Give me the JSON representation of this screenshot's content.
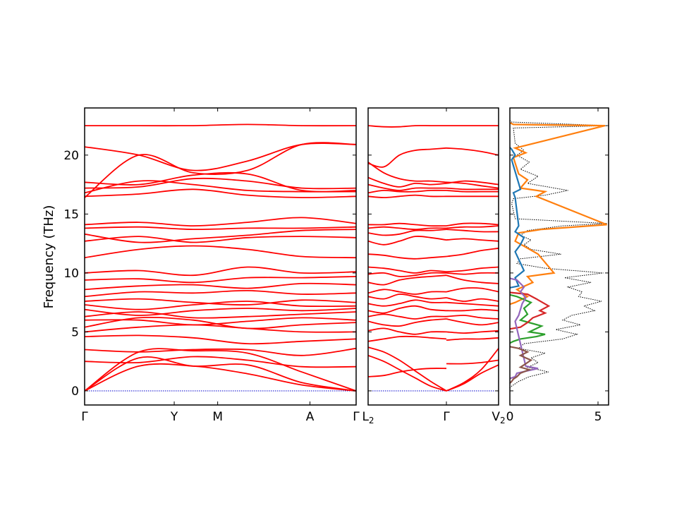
{
  "chart_data": {
    "type": "line",
    "ylabel": "Frequency (THz)",
    "ylim": [
      -1.2,
      24
    ],
    "yticks": [
      0,
      5,
      10,
      15,
      20
    ],
    "zero_line_color": "#0000cc",
    "band_color": "#ff0000",
    "panels": [
      {
        "kind": "dispersion",
        "xticks": [
          "Γ",
          "Y",
          "M",
          "A",
          "Γ"
        ],
        "tick_positions": [
          0,
          0.33,
          0.49,
          0.83,
          1.0
        ],
        "band_segments": [
          {
            "from": 0,
            "to": 1,
            "bands": [
              [
                0,
                2.1,
                2.1,
                1.45,
                0.5,
                0
              ],
              [
                0,
                2.8,
                2.1,
                2.2,
                0.7,
                0
              ],
              [
                0,
                3.3,
                3.4,
                3.2,
                1.6,
                0
              ],
              [
                2.5,
                2.4,
                2.9,
                2.6,
                2.05,
                2.05
              ],
              [
                3.5,
                3.3,
                3.5,
                3.5,
                3.0,
                3.6
              ],
              [
                4.6,
                4.7,
                4.5,
                4.0,
                4.2,
                4.4
              ],
              [
                5.0,
                5.4,
                5.6,
                5.3,
                5.0,
                5.0
              ],
              [
                5.4,
                6.2,
                6.0,
                5.3,
                5.6,
                5.8
              ],
              [
                6.0,
                6.0,
                5.6,
                5.9,
                6.2,
                6.0
              ],
              [
                6.3,
                6.7,
                6.2,
                6.3,
                6.5,
                6.7
              ],
              [
                6.9,
                6.4,
                6.8,
                7.0,
                6.8,
                7.0
              ],
              [
                7.3,
                6.9,
                7.3,
                7.6,
                7.2,
                7.2
              ],
              [
                7.6,
                7.8,
                7.5,
                7.3,
                7.7,
                7.5
              ],
              [
                8.0,
                8.4,
                8.3,
                8.5,
                8.2,
                8.3
              ],
              [
                8.6,
                8.9,
                9.0,
                8.7,
                9.1,
                9.0
              ],
              [
                9.4,
                9.5,
                9.2,
                9.6,
                9.6,
                9.7
              ],
              [
                10.0,
                10.2,
                9.8,
                10.5,
                10.0,
                10.1
              ],
              [
                11.3,
                12.0,
                12.3,
                12.0,
                11.4,
                11.3
              ],
              [
                12.7,
                13.1,
                12.6,
                13.0,
                13.1,
                13.0
              ],
              [
                13.3,
                12.6,
                12.9,
                13.2,
                13.6,
                13.7
              ],
              [
                13.8,
                13.9,
                13.7,
                13.8,
                13.8,
                13.9
              ],
              [
                14.1,
                14.3,
                14.0,
                14.3,
                14.7,
                14.2
              ],
              [
                16.5,
                16.7,
                17.1,
                16.6,
                16.4,
                16.5
              ],
              [
                16.8,
                17.8,
                17.5,
                17.0,
                16.9,
                16.9
              ],
              [
                17.2,
                17.3,
                18.0,
                17.8,
                17.2,
                17.2
              ],
              [
                17.7,
                17.5,
                18.3,
                18.4,
                17.0,
                17.0
              ],
              [
                16.4,
                20.0,
                18.5,
                18.7,
                20.9,
                20.9
              ],
              [
                20.7,
                20.0,
                18.7,
                19.5,
                20.9,
                20.9
              ],
              [
                22.5,
                22.5,
                22.5,
                22.6,
                22.5,
                22.5
              ]
            ]
          }
        ]
      },
      {
        "kind": "dispersion",
        "xticks": [
          "L2",
          "Γ",
          "V2"
        ],
        "tick_positions": [
          0,
          0.6,
          1.0
        ],
        "band_segments": [
          {
            "from": 0,
            "to": 0.6,
            "bands": [
              [
                1.2,
                1.3,
                1.6,
                1.8,
                1.9,
                1.9
              ],
              [
                3.0,
                2.5,
                1.8,
                1.1,
                0.4,
                0
              ],
              [
                3.7,
                3.3,
                2.6,
                1.7,
                0.8,
                0
              ],
              [
                4.2,
                4.4,
                4.6,
                4.6,
                4.5,
                4.4
              ],
              [
                5.1,
                5.3,
                5.0,
                4.8,
                5.0,
                5.0
              ],
              [
                5.9,
                5.6,
                5.5,
                5.8,
                6.0,
                6.1
              ],
              [
                6.3,
                6.5,
                6.3,
                6.1,
                6.3,
                6.3
              ],
              [
                6.8,
                6.6,
                7.0,
                7.2,
                6.9,
                6.8
              ],
              [
                7.4,
                7.2,
                7.4,
                7.7,
                7.5,
                7.5
              ],
              [
                8.0,
                7.8,
                8.2,
                8.0,
                7.8,
                7.9
              ],
              [
                8.3,
                8.6,
                8.4,
                8.2,
                8.4,
                8.4
              ],
              [
                9.2,
                9.0,
                9.4,
                9.6,
                9.7,
                9.8
              ],
              [
                9.9,
                10.0,
                9.7,
                9.8,
                10.0,
                10.0
              ],
              [
                10.5,
                10.4,
                10.2,
                10.0,
                10.2,
                10.1
              ],
              [
                11.6,
                11.5,
                11.3,
                11.2,
                11.3,
                11.4
              ],
              [
                12.7,
                12.4,
                12.7,
                13.1,
                13.0,
                12.8
              ],
              [
                13.4,
                13.2,
                13.3,
                13.6,
                13.6,
                13.7
              ],
              [
                13.8,
                13.9,
                13.8,
                13.7,
                13.8,
                13.8
              ],
              [
                14.1,
                14.1,
                14.2,
                14.1,
                14.0,
                14.0
              ],
              [
                16.5,
                16.4,
                16.5,
                16.6,
                16.5,
                16.5
              ],
              [
                16.8,
                17.0,
                16.9,
                16.9,
                17.0,
                17.0
              ],
              [
                17.5,
                17.2,
                17.0,
                17.2,
                17.2,
                17.2
              ],
              [
                18.1,
                17.6,
                17.3,
                17.6,
                17.5,
                17.6
              ],
              [
                19.4,
                18.5,
                18.0,
                17.8,
                17.8,
                17.7
              ],
              [
                19.3,
                19.0,
                20.0,
                20.4,
                20.5,
                20.6
              ],
              [
                22.5,
                22.4,
                22.4,
                22.5,
                22.5,
                22.5
              ]
            ]
          },
          {
            "from": 0.6,
            "to": 1.0,
            "bands": [
              [
                2.3,
                2.3,
                2.4,
                2.6
              ],
              [
                0,
                0.6,
                1.5,
                2.2
              ],
              [
                0,
                0.7,
                1.8,
                3.6
              ],
              [
                4.3,
                4.4,
                4.4,
                4.5
              ],
              [
                5.0,
                4.9,
                5.0,
                5.1
              ],
              [
                6.1,
                5.8,
                5.6,
                5.8
              ],
              [
                6.3,
                6.4,
                6.2,
                6.1
              ],
              [
                6.8,
                6.8,
                6.9,
                6.8
              ],
              [
                7.5,
                7.4,
                7.3,
                7.2
              ],
              [
                7.9,
                7.6,
                7.8,
                7.6
              ],
              [
                8.4,
                8.7,
                8.7,
                8.4
              ],
              [
                9.8,
                9.4,
                9.2,
                9.1
              ],
              [
                10.0,
                9.9,
                10.0,
                10.0
              ],
              [
                10.1,
                10.2,
                10.4,
                10.5
              ],
              [
                11.4,
                11.6,
                11.9,
                12.1
              ],
              [
                12.8,
                12.9,
                12.8,
                12.7
              ],
              [
                13.7,
                13.6,
                13.5,
                13.5
              ],
              [
                13.8,
                13.9,
                13.9,
                14.0
              ],
              [
                14.0,
                14.2,
                14.2,
                14.1
              ],
              [
                16.5,
                16.5,
                16.5,
                16.5
              ],
              [
                17.0,
                16.9,
                16.9,
                16.9
              ],
              [
                17.2,
                17.1,
                17.1,
                17.1
              ],
              [
                17.6,
                17.8,
                17.7,
                17.5
              ],
              [
                17.7,
                17.6,
                17.4,
                17.2
              ],
              [
                20.6,
                20.5,
                20.3,
                20.0
              ],
              [
                22.5,
                22.5,
                22.5,
                22.5
              ]
            ]
          }
        ]
      },
      {
        "kind": "dos",
        "xlim": [
          0,
          5.6
        ],
        "xticks": [
          0,
          5
        ],
        "total_color": "#000000",
        "series": [
          {
            "color": "#ff7f0e",
            "y": [
              22.5,
              22.6,
              20.6,
              20.2,
              19.8,
              18.4,
              17.9,
              17.2,
              16.9,
              16.5,
              14.1,
              13.7,
              13.4,
              12.7,
              11.6,
              10.0,
              9.7,
              9.2,
              8.6,
              8.0,
              7.5
            ],
            "x": [
              5.4,
              0.2,
              0.3,
              0.9,
              0.2,
              0.5,
              1.0,
              0.6,
              2.0,
              1.5,
              5.5,
              1.8,
              0.5,
              0.3,
              1.6,
              2.5,
              1.0,
              1.3,
              0.4,
              1.0,
              0.3
            ]
          },
          {
            "color": "#1f77b4",
            "y": [
              20.5,
              20.0,
              19.6,
              17.1,
              16.8,
              16.4,
              14.0,
              13.5,
              13.0,
              12.4,
              11.8,
              10.2,
              9.6,
              8.9
            ],
            "x": [
              0.1,
              0.3,
              0.1,
              0.6,
              0.2,
              0.3,
              0.5,
              0.3,
              0.8,
              0.6,
              0.3,
              0.8,
              0.3,
              0.5
            ]
          },
          {
            "color": "#2ca02c",
            "y": [
              8.0,
              7.5,
              7.0,
              6.5,
              6.0,
              5.5,
              5.0,
              4.8,
              4.6,
              4.4,
              4.2
            ],
            "x": [
              0.4,
              1.2,
              0.8,
              1.0,
              0.6,
              1.8,
              1.1,
              2.0,
              1.5,
              0.6,
              0.2
            ]
          },
          {
            "color": "#d62728",
            "y": [
              8.2,
              7.8,
              7.2,
              6.8,
              6.6,
              6.2,
              5.8,
              5.6,
              5.4
            ],
            "x": [
              1.0,
              1.5,
              2.2,
              1.7,
              2.0,
              1.3,
              1.0,
              0.8,
              0.6
            ]
          },
          {
            "color": "#9467bd",
            "y": [
              9.4,
              8.8,
              8.4,
              7.9,
              7.4,
              6.9,
              6.4,
              5.9,
              2.1,
              1.9,
              1.7,
              1.5,
              1.2
            ],
            "x": [
              0.4,
              0.8,
              0.6,
              0.9,
              0.7,
              0.6,
              0.5,
              0.3,
              0.9,
              1.6,
              1.0,
              0.4,
              0.3
            ]
          },
          {
            "color": "#8c564b",
            "y": [
              3.6,
              3.3,
              3.0,
              2.8,
              2.6,
              2.2,
              2.0,
              1.8,
              1.5,
              1.2,
              1.0,
              0.8
            ],
            "x": [
              0.5,
              1.0,
              0.6,
              0.9,
              1.2,
              0.8,
              0.6,
              1.1,
              0.6,
              0.4,
              0.2,
              0.1
            ]
          }
        ],
        "total": {
          "y": [
            22.8,
            22.5,
            22.3,
            21.0,
            20.4,
            20.0,
            19.4,
            18.8,
            18.2,
            17.6,
            17.0,
            16.6,
            16.3,
            15.9,
            14.6,
            14.2,
            14.0,
            13.6,
            13.2,
            12.8,
            12.4,
            12.0,
            11.6,
            11.2,
            10.8,
            10.4,
            10.0,
            9.6,
            9.2,
            8.8,
            8.4,
            8.0,
            7.6,
            7.2,
            6.8,
            6.4,
            6.0,
            5.6,
            5.2,
            4.8,
            4.4,
            4.0,
            3.6,
            3.2,
            2.8,
            2.4,
            2.0,
            1.6,
            1.2,
            0.8,
            0.4
          ],
          "x": [
            0.1,
            5.6,
            0.2,
            0.3,
            0.8,
            0.4,
            1.1,
            0.6,
            1.6,
            1.0,
            3.3,
            2.0,
            0.2,
            0.1,
            0.3,
            5.5,
            3.0,
            1.0,
            0.6,
            1.2,
            0.8,
            1.2,
            2.9,
            0.6,
            0.4,
            2.0,
            5.3,
            3.1,
            4.6,
            3.3,
            4.1,
            3.9,
            5.2,
            4.2,
            4.8,
            3.5,
            3.0,
            4.0,
            2.6,
            3.8,
            3.0,
            0.8,
            0.5,
            2.0,
            1.2,
            1.6,
            1.0,
            2.2,
            1.1,
            0.5,
            0.1
          ]
        }
      }
    ]
  }
}
